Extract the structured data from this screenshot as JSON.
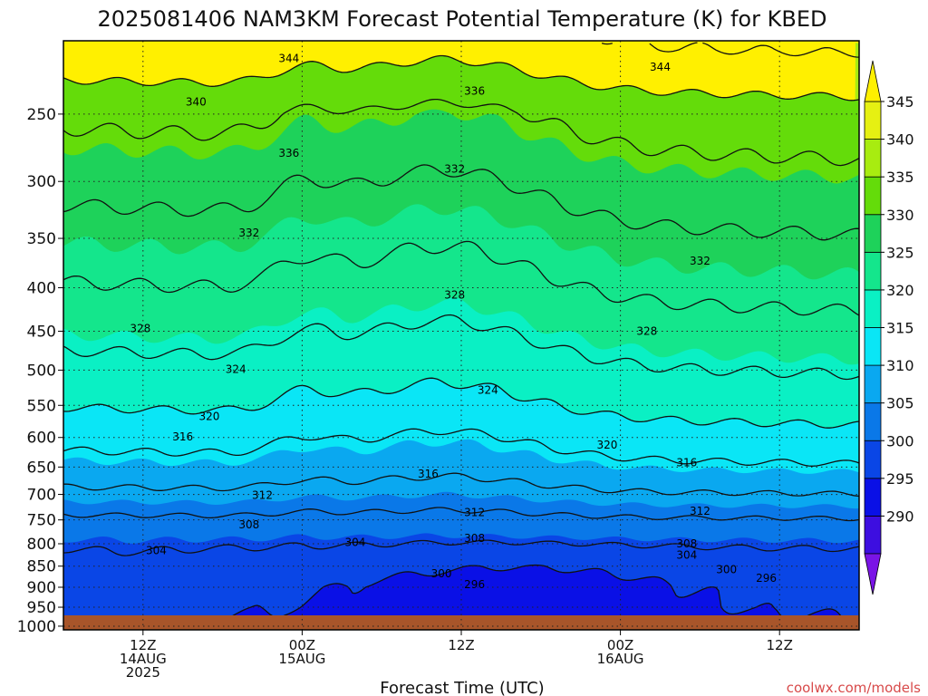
{
  "title": "2025081406 NAM3KM Forecast Potential Temperature (K) for KBED",
  "credit": "coolwx.com/models",
  "chart_data": {
    "type": "heatmap",
    "title": "2025081406 NAM3KM Forecast Potential Temperature (K) for KBED",
    "xlabel": "Forecast Time (UTC)",
    "ylabel": "",
    "ylim": [
      1000,
      200
    ],
    "y_ticks": [
      250,
      300,
      350,
      400,
      450,
      500,
      550,
      600,
      650,
      700,
      750,
      800,
      850,
      900,
      950,
      1000
    ],
    "x_range_hours": [
      0,
      60
    ],
    "x_ticks": [
      {
        "hour": 6,
        "lines": [
          "12Z",
          "14AUG",
          "2025"
        ]
      },
      {
        "hour": 18,
        "lines": [
          "00Z",
          "15AUG"
        ]
      },
      {
        "hour": 30,
        "lines": [
          "12Z"
        ]
      },
      {
        "hour": 42,
        "lines": [
          "00Z",
          "16AUG"
        ]
      },
      {
        "hour": 54,
        "lines": [
          "12Z"
        ]
      }
    ],
    "grid": true,
    "colorbar": {
      "levels": [
        290,
        295,
        300,
        305,
        310,
        315,
        320,
        325,
        330,
        335,
        340,
        345
      ],
      "labels": [
        "345",
        "340",
        "335",
        "330",
        "325",
        "320",
        "315",
        "310",
        "305",
        "300",
        "295",
        "290"
      ],
      "colors": [
        "#7a14e6",
        "#3d0ee0",
        "#0a10e6",
        "#0a46e6",
        "#0a78e8",
        "#0aa8f0",
        "#0ae6f6",
        "#0af0c4",
        "#14e68c",
        "#1ed25a",
        "#64dc0a",
        "#a8ec10",
        "#e6f012",
        "#fff000"
      ]
    },
    "contour_levels": [
      296,
      300,
      304,
      308,
      312,
      316,
      320,
      324,
      328,
      332,
      336,
      340,
      344
    ],
    "contour_labels": [
      {
        "text": "344",
        "hour": 17.0,
        "p": 215
      },
      {
        "text": "344",
        "hour": 45.0,
        "p": 220
      },
      {
        "text": "340",
        "hour": 10.0,
        "p": 242
      },
      {
        "text": "336",
        "hour": 31.0,
        "p": 235
      },
      {
        "text": "336",
        "hour": 17.0,
        "p": 278
      },
      {
        "text": "332",
        "hour": 29.5,
        "p": 290
      },
      {
        "text": "332",
        "hour": 14.0,
        "p": 345
      },
      {
        "text": "332",
        "hour": 48.0,
        "p": 372
      },
      {
        "text": "328",
        "hour": 29.5,
        "p": 408
      },
      {
        "text": "328",
        "hour": 5.8,
        "p": 447
      },
      {
        "text": "328",
        "hour": 44.0,
        "p": 450
      },
      {
        "text": "324",
        "hour": 13.0,
        "p": 499
      },
      {
        "text": "324",
        "hour": 32.0,
        "p": 528
      },
      {
        "text": "320",
        "hour": 11.0,
        "p": 567
      },
      {
        "text": "320",
        "hour": 41.0,
        "p": 612
      },
      {
        "text": "316",
        "hour": 9.0,
        "p": 599
      },
      {
        "text": "316",
        "hour": 27.5,
        "p": 662
      },
      {
        "text": "316",
        "hour": 47.0,
        "p": 642
      },
      {
        "text": "312",
        "hour": 15.0,
        "p": 702
      },
      {
        "text": "312",
        "hour": 31.0,
        "p": 735
      },
      {
        "text": "312",
        "hour": 48.0,
        "p": 732
      },
      {
        "text": "308",
        "hour": 14.0,
        "p": 760
      },
      {
        "text": "308",
        "hour": 31.0,
        "p": 788
      },
      {
        "text": "308",
        "hour": 47.0,
        "p": 800
      },
      {
        "text": "304",
        "hour": 7.0,
        "p": 815
      },
      {
        "text": "304",
        "hour": 22.0,
        "p": 797
      },
      {
        "text": "304",
        "hour": 47.0,
        "p": 825
      },
      {
        "text": "300",
        "hour": 28.5,
        "p": 867
      },
      {
        "text": "300",
        "hour": 50.0,
        "p": 858
      },
      {
        "text": "296",
        "hour": 31.0,
        "p": 893
      },
      {
        "text": "296",
        "hour": 53.0,
        "p": 878
      }
    ],
    "surface_color": "#a8552a"
  }
}
